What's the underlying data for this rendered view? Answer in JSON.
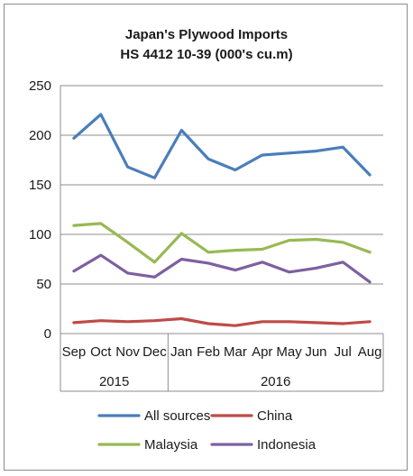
{
  "chart_data": {
    "type": "line",
    "title": "Japan's Plywood Imports",
    "subtitle": "HS 4412 10-39  (000's cu.m)",
    "categories": [
      "Sep",
      "Oct",
      "Nov",
      "Dec",
      "Jan",
      "Feb",
      "Mar",
      "Apr",
      "May",
      "Jun",
      "Jul",
      "Aug"
    ],
    "year_groups": [
      {
        "label": "2015",
        "start": 0,
        "end": 3
      },
      {
        "label": "2016",
        "start": 4,
        "end": 11
      }
    ],
    "ylim": [
      0,
      250
    ],
    "yticks": [
      0,
      50,
      100,
      150,
      200,
      250
    ],
    "grid": true,
    "legend_position": "bottom",
    "series": [
      {
        "name": "All sources",
        "color": "#4a7ebb",
        "values": [
          197,
          221,
          168,
          157,
          205,
          176,
          165,
          180,
          182,
          184,
          188,
          160
        ]
      },
      {
        "name": "China",
        "color": "#be4b48",
        "values": [
          11,
          13,
          12,
          13,
          15,
          10,
          8,
          12,
          12,
          11,
          10,
          12
        ]
      },
      {
        "name": "Malaysia",
        "color": "#98b954",
        "values": [
          109,
          111,
          92,
          72,
          101,
          82,
          84,
          85,
          94,
          95,
          92,
          82
        ]
      },
      {
        "name": "Indonesia",
        "color": "#7d60a0",
        "values": [
          63,
          79,
          61,
          57,
          75,
          71,
          64,
          72,
          62,
          66,
          72,
          52
        ]
      }
    ]
  }
}
